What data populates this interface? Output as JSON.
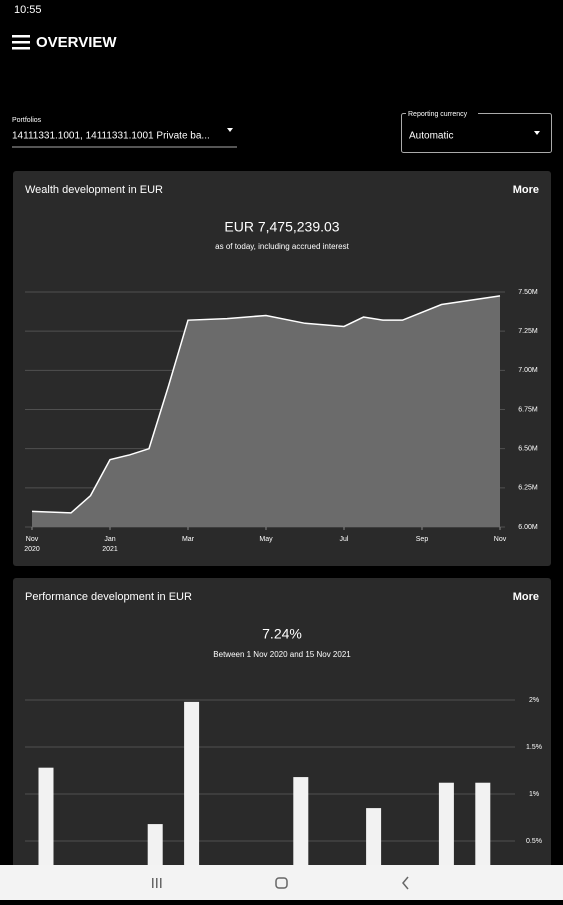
{
  "status_bar": {
    "time": "10:55"
  },
  "header": {
    "title": "OVERVIEW"
  },
  "filters": {
    "portfolios_label": "Portfolios",
    "portfolios_value": "14111331.1001, 14111331.1001 Private ba...",
    "currency_label": "Reporting currency",
    "currency_value": "Automatic"
  },
  "chart_data": [
    {
      "type": "area",
      "title": "Wealth development in EUR",
      "action": "More",
      "headline": "EUR 7,475,239.03",
      "subtitle": "as of today, including accrued interest",
      "x": [
        0,
        1,
        1.5,
        2,
        2.5,
        3,
        3.5,
        4,
        5,
        6,
        7,
        8,
        8.5,
        9,
        9.5,
        10.5,
        12
      ],
      "values": [
        6100000,
        6090000,
        6200000,
        6430000,
        6460000,
        6500000,
        6900000,
        7320000,
        7330000,
        7350000,
        7300000,
        7280000,
        7340000,
        7320000,
        7320000,
        7420000,
        7475000
      ],
      "color": "#6b6b6b",
      "line_color": "#ffffff",
      "xlim": [
        0,
        12
      ],
      "xticks": [
        {
          "value": 0,
          "label": "Nov 2020"
        },
        {
          "value": 2,
          "label": "Jan 2021"
        },
        {
          "value": 4,
          "label": "Mar"
        },
        {
          "value": 6,
          "label": "May"
        },
        {
          "value": 8,
          "label": "Jul"
        },
        {
          "value": 10,
          "label": "Sep"
        },
        {
          "value": 12,
          "label": "Nov"
        }
      ],
      "ylim": [
        6000000,
        7600000
      ],
      "yticks": [
        {
          "value": 6000000,
          "label": "6.00M"
        },
        {
          "value": 6250000,
          "label": "6.25M"
        },
        {
          "value": 6500000,
          "label": "6.50M"
        },
        {
          "value": 6750000,
          "label": "6.75M"
        },
        {
          "value": 7000000,
          "label": "7.00M"
        },
        {
          "value": 7250000,
          "label": "7.25M"
        },
        {
          "value": 7500000,
          "label": "7.50M"
        }
      ],
      "grid": true
    },
    {
      "type": "bar",
      "title": "Performance development in EUR",
      "action": "More",
      "headline": "7.24%",
      "subtitle": "Between 1 Nov 2020 and 15 Nov 2021",
      "categories": [
        null,
        null,
        null,
        null,
        null,
        null,
        null,
        null,
        null,
        null,
        null,
        null,
        null
      ],
      "values": [
        1.28,
        null,
        null,
        0.68,
        1.98,
        null,
        null,
        1.18,
        null,
        0.85,
        null,
        1.12,
        1.12
      ],
      "color": "#f2f2f2",
      "ylim": [
        0,
        2.1
      ],
      "yticks": [
        {
          "value": 0.5,
          "label": "0.5%"
        },
        {
          "value": 1,
          "label": "1%"
        },
        {
          "value": 1.5,
          "label": "1.5%"
        },
        {
          "value": 2,
          "label": "2%"
        }
      ],
      "grid": true
    }
  ]
}
